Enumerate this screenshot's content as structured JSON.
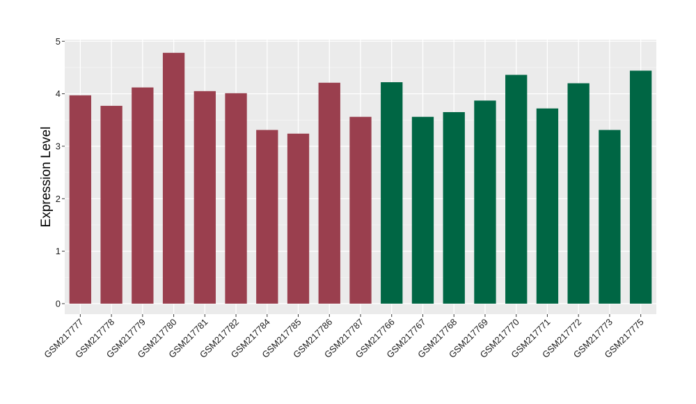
{
  "chart_data": {
    "type": "bar",
    "title": "",
    "xlabel": "",
    "ylabel": "Expression Level",
    "ylim": [
      -0.2,
      5.03
    ],
    "yticks": [
      0,
      1,
      2,
      3,
      4,
      5
    ],
    "grid": true,
    "legend": "none",
    "categories": [
      "GSM217777",
      "GSM217778",
      "GSM217779",
      "GSM217780",
      "GSM217781",
      "GSM217782",
      "GSM217784",
      "GSM217785",
      "GSM217786",
      "GSM217787",
      "GSM217766",
      "GSM217767",
      "GSM217768",
      "GSM217769",
      "GSM217770",
      "GSM217771",
      "GSM217772",
      "GSM217773",
      "GSM217775"
    ],
    "values": [
      3.97,
      3.77,
      4.12,
      4.78,
      4.05,
      4.01,
      3.31,
      3.24,
      4.21,
      3.56,
      4.22,
      3.56,
      3.65,
      3.87,
      4.36,
      3.72,
      4.2,
      3.31,
      4.44
    ],
    "groups": [
      {
        "color": "#9a3f4e",
        "count": 10
      },
      {
        "color": "#006644",
        "count": 9
      }
    ]
  }
}
